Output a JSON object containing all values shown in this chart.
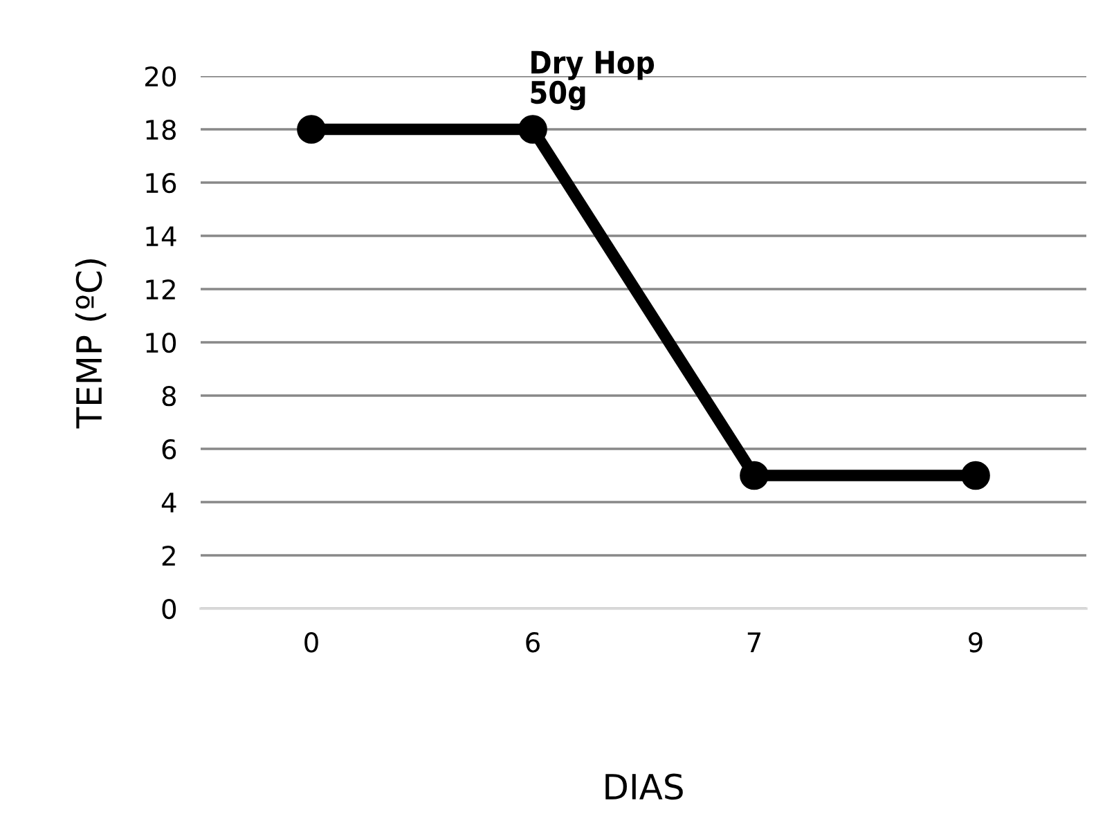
{
  "chart_data": {
    "type": "line",
    "xlabel": "DIAS",
    "ylabel": "TEMP (ºC)",
    "categories": [
      "0",
      "6",
      "7",
      "9"
    ],
    "series": [
      {
        "color": "#000000",
        "values": [
          18,
          18,
          5,
          5
        ]
      }
    ],
    "ylim": [
      0,
      20
    ],
    "yticks": [
      0,
      2,
      4,
      6,
      8,
      10,
      12,
      14,
      16,
      18,
      20
    ],
    "grid": "y",
    "marker": "circle",
    "line_style": "solid",
    "annotations": [
      {
        "text": "Dry Hop\n50g",
        "x": "6",
        "y": 18
      }
    ]
  }
}
